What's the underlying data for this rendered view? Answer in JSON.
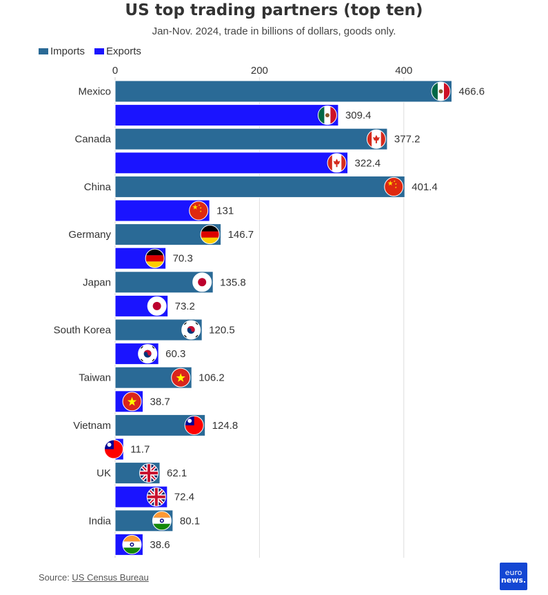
{
  "title": "US top trading partners (top ten)",
  "subtitle": "Jan-Nov. 2024, trade in billions of dollars, goods only.",
  "legend": [
    {
      "label": "Imports",
      "color": "#2a6a96"
    },
    {
      "label": "Exports",
      "color": "#1a14ff"
    }
  ],
  "source_prefix": "Source: ",
  "source_link": "US Census Bureau",
  "logo_line1": "euro",
  "logo_line2": "news.",
  "chart_data": {
    "type": "bar",
    "orientation": "horizontal",
    "title": "US top trading partners (top ten)",
    "subtitle": "Jan-Nov. 2024, trade in billions of dollars, goods only.",
    "categories": [
      "Mexico",
      "Canada",
      "China",
      "Germany",
      "Japan",
      "South Korea",
      "Taiwan",
      "Vietnam",
      "UK",
      "India"
    ],
    "series": [
      {
        "name": "Imports",
        "color": "#2a6a96",
        "values": [
          466.6,
          377.2,
          401.4,
          146.7,
          135.8,
          120.5,
          106.2,
          124.8,
          62.1,
          80.1
        ]
      },
      {
        "name": "Exports",
        "color": "#1a14ff",
        "values": [
          309.4,
          322.4,
          131,
          70.3,
          73.2,
          60.3,
          38.7,
          11.7,
          72.4,
          38.6
        ]
      }
    ],
    "x_ticks": [
      0,
      200,
      400
    ],
    "xlim": [
      0,
      600
    ],
    "grid": true,
    "legend_position": "top-left",
    "axis_position": "top",
    "flag_icons": {
      "imports": [
        "mexico-flag",
        "canada-flag",
        "china-flag",
        "germany-flag",
        "japan-flag",
        "south-korea-flag",
        "vietnam-flag",
        "taiwan-flag",
        "uk-flag",
        "india-flag"
      ],
      "exports": [
        "mexico-flag",
        "canada-flag",
        "china-flag",
        "germany-flag",
        "japan-flag",
        "south-korea-flag",
        "vietnam-flag",
        "taiwan-flag",
        "uk-flag",
        "india-flag"
      ]
    }
  }
}
